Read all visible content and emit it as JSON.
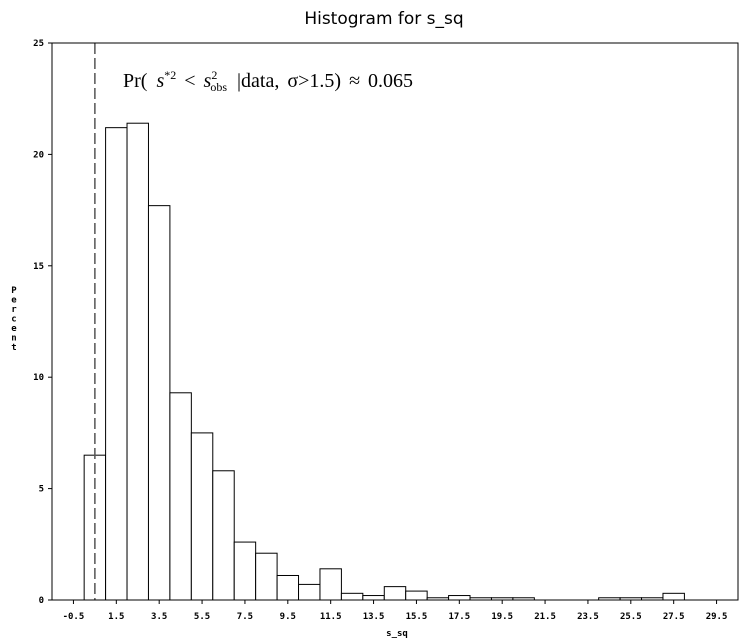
{
  "chart_data": {
    "type": "bar",
    "title": "Histogram for s_sq",
    "xlabel": "s_sq",
    "ylabel": "Percent",
    "bin_width": 1,
    "categories": [
      "-0.5",
      "0.5",
      "1.5",
      "2.5",
      "3.5",
      "4.5",
      "5.5",
      "6.5",
      "7.5",
      "8.5",
      "9.5",
      "10.5",
      "11.5",
      "12.5",
      "13.5",
      "14.5",
      "15.5",
      "16.5",
      "17.5",
      "18.5",
      "19.5",
      "20.5",
      "21.5",
      "22.5",
      "23.5",
      "24.5",
      "25.5",
      "26.5",
      "27.5",
      "28.5",
      "29.5"
    ],
    "values": [
      0,
      6.5,
      21.2,
      21.4,
      17.7,
      9.3,
      7.5,
      5.8,
      2.6,
      2.1,
      1.1,
      0.7,
      1.4,
      0.3,
      0.2,
      0.6,
      0.4,
      0.1,
      0.2,
      0.1,
      0.1,
      0.1,
      0,
      0,
      0,
      0.1,
      0.1,
      0.1,
      0.3,
      0,
      0
    ],
    "x_tick_labels": [
      "-0.5",
      "1.5",
      "3.5",
      "5.5",
      "7.5",
      "9.5",
      "11.5",
      "13.5",
      "15.5",
      "17.5",
      "19.5",
      "21.5",
      "23.5",
      "25.5",
      "27.5",
      "29.5"
    ],
    "y_ticks": [
      0,
      5,
      10,
      15,
      20,
      25
    ],
    "ylim": [
      0,
      25
    ],
    "xlim": [
      -1.5,
      30.5
    ],
    "grid": false,
    "reference_line_x": 0.5,
    "annotation": {
      "pr": "Pr(",
      "s": "s",
      "star_sq": "*2",
      "lt": "<",
      "s_obs_sup": "2",
      "s_obs_sub": "obs",
      "rest_a": "|data,",
      "sigma": "σ",
      "rest_b": ">1.5)",
      "approx": "≈",
      "value": "0.065"
    }
  }
}
